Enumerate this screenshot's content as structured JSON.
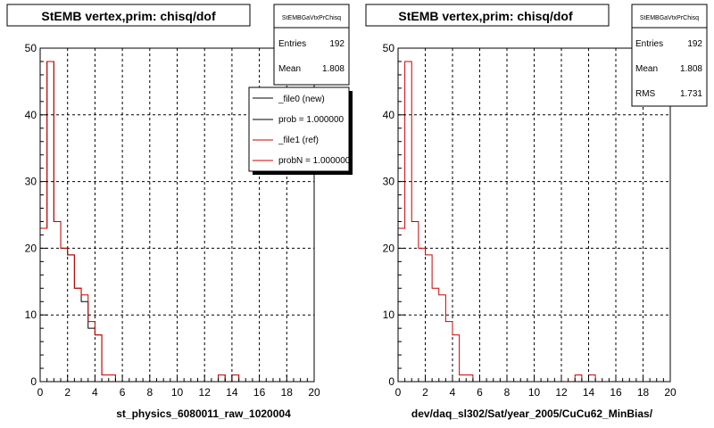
{
  "panels": [
    {
      "title": "StEMB  vertex,prim: chisq/dof",
      "stats": {
        "name": "StEMBGaVtxPrChisq",
        "rows": [
          {
            "label": "Entries",
            "value": "192"
          },
          {
            "label": "Mean",
            "value": "1.808"
          }
        ]
      },
      "legend": [
        {
          "label": "_file0 (new)",
          "color": "#000000"
        },
        {
          "label": "prob = 1.000000",
          "color": "#000000"
        },
        {
          "label": "_file1 (ref)",
          "color": "#cc0000"
        },
        {
          "label": "probN = 1.000000",
          "color": "#cc0000"
        }
      ],
      "xtitle": "st_physics_6080011_raw_1020004"
    },
    {
      "title": "StEMB  vertex,prim: chisq/dof",
      "stats": {
        "name": "StEMBGaVtxPrChisq",
        "rows": [
          {
            "label": "Entries",
            "value": "192"
          },
          {
            "label": "Mean",
            "value": "1.808"
          },
          {
            "label": "RMS",
            "value": "1.731"
          }
        ]
      },
      "legend": [],
      "xtitle": "dev/daq_sl302/Sat/year_2005/CuCu62_MinBias/"
    }
  ],
  "chart_data": [
    {
      "type": "histogram",
      "title": "StEMB  vertex,prim: chisq/dof",
      "xlabel": "st_physics_6080011_raw_1020004",
      "ylabel": "",
      "xlim": [
        0,
        20
      ],
      "ylim": [
        0,
        50
      ],
      "grid": true,
      "legend_position": "top-right",
      "bin_width": 0.5,
      "x_ticks": [
        0,
        2,
        4,
        6,
        8,
        10,
        12,
        14,
        16,
        18,
        20
      ],
      "y_ticks": [
        0,
        10,
        20,
        30,
        40,
        50
      ],
      "series": [
        {
          "name": "_file0 (new)",
          "color": "#000000",
          "values": [
            23,
            48,
            24,
            20,
            19,
            14,
            12,
            8,
            7,
            1,
            1,
            0,
            0,
            0,
            0,
            0,
            0,
            0,
            0,
            0,
            0,
            0,
            0,
            0,
            0,
            0,
            1,
            0,
            1,
            0,
            0,
            0,
            0,
            0,
            0,
            0,
            0,
            0,
            0,
            0
          ]
        },
        {
          "name": "_file1 (ref)",
          "color": "#cc0000",
          "values": [
            23,
            48,
            24,
            20,
            19,
            14,
            13,
            9,
            7,
            1,
            1,
            0,
            0,
            0,
            0,
            0,
            0,
            0,
            0,
            0,
            0,
            0,
            0,
            0,
            0,
            0,
            1,
            0,
            1,
            0,
            0,
            0,
            0,
            0,
            0,
            0,
            0,
            0,
            0,
            0
          ]
        }
      ]
    },
    {
      "type": "histogram",
      "title": "StEMB  vertex,prim: chisq/dof",
      "xlabel": "dev/daq_sl302/Sat/year_2005/CuCu62_MinBias/",
      "ylabel": "",
      "xlim": [
        0,
        20
      ],
      "ylim": [
        0,
        50
      ],
      "grid": true,
      "bin_width": 0.5,
      "x_ticks": [
        0,
        2,
        4,
        6,
        8,
        10,
        12,
        14,
        16,
        18,
        20
      ],
      "y_ticks": [
        0,
        10,
        20,
        30,
        40,
        50
      ],
      "series": [
        {
          "name": "",
          "color": "#cc0000",
          "values": [
            23,
            48,
            24,
            20,
            19,
            14,
            13,
            9,
            7,
            1,
            1,
            0,
            0,
            0,
            0,
            0,
            0,
            0,
            0,
            0,
            0,
            0,
            0,
            0,
            0,
            0,
            1,
            0,
            1,
            0,
            0,
            0,
            0,
            0,
            0,
            0,
            0,
            0,
            0,
            0
          ]
        }
      ]
    }
  ]
}
